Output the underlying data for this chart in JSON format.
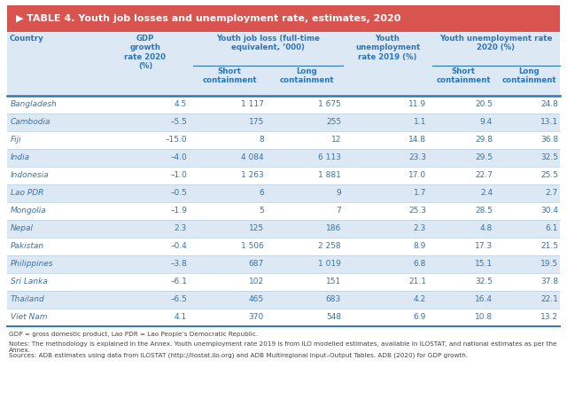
{
  "title": "TABLE 4. Youth job losses and unemployment rate, estimates, 2020",
  "title_bg": "#d9534f",
  "title_color": "#ffffff",
  "header_color": "#2e75b6",
  "country_color": "#2e75b6",
  "data_color": "#2e75b6",
  "bg_color": "#ffffff",
  "row_alt_bg": "#dce9f5",
  "row_white_bg": "#ffffff",
  "countries": [
    "Bangladesh",
    "Cambodia",
    "Fiji",
    "India",
    "Indonesia",
    "Lao PDR",
    "Mongolia",
    "Nepal",
    "Pakistan",
    "Philippines",
    "Sri Lanka",
    "Thailand",
    "Viet Nam"
  ],
  "gdp_growth": [
    "4.5",
    "–5.5",
    "–15.0",
    "–4.0",
    "–1.0",
    "–0.5",
    "–1.9",
    "2.3",
    "–0.4",
    "–3.8",
    "–6.1",
    "–6.5",
    "4.1"
  ],
  "job_loss_short": [
    "1 117",
    "175",
    "8",
    "4 084",
    "1 263",
    "6",
    "5",
    "125",
    "1 506",
    "687",
    "102",
    "465",
    "370"
  ],
  "job_loss_long": [
    "1 675",
    "255",
    "12",
    "6 113",
    "1 881",
    "9",
    "7",
    "186",
    "2 258",
    "1 019",
    "151",
    "683",
    "548"
  ],
  "unemp_2019": [
    "11.9",
    "1.1",
    "14.8",
    "23.3",
    "17.0",
    "1.7",
    "25.3",
    "2.3",
    "8.9",
    "6.8",
    "21.1",
    "4.2",
    "6.9"
  ],
  "unemp_short": [
    "20.5",
    "9.4",
    "29.8",
    "29.5",
    "22.7",
    "2.4",
    "28.5",
    "4.8",
    "17.3",
    "15.1",
    "32.5",
    "16.4",
    "10.8"
  ],
  "unemp_long": [
    "24.8",
    "13.1",
    "36.8",
    "32.5",
    "25.5",
    "2.7",
    "30.4",
    "6.1",
    "21.5",
    "19.5",
    "37.8",
    "22.1",
    "13.2"
  ],
  "footnote1": "GDP = gross domestic product, Lao PDR = Lao People’s Democratic Republic.",
  "footnote2": "Notes: The methodology is explained in the Annex. Youth unemployment rate 2019 is from ILO modelled estimates, available in ILOSTAT, and national estimates as per the Annex.",
  "footnote3": "Sources: ADB estimates using data from ILOSTAT (http://ilostat.ilo.org) and ADB Multiregional Input–Output Tables. ADB (2020) for GDP growth."
}
